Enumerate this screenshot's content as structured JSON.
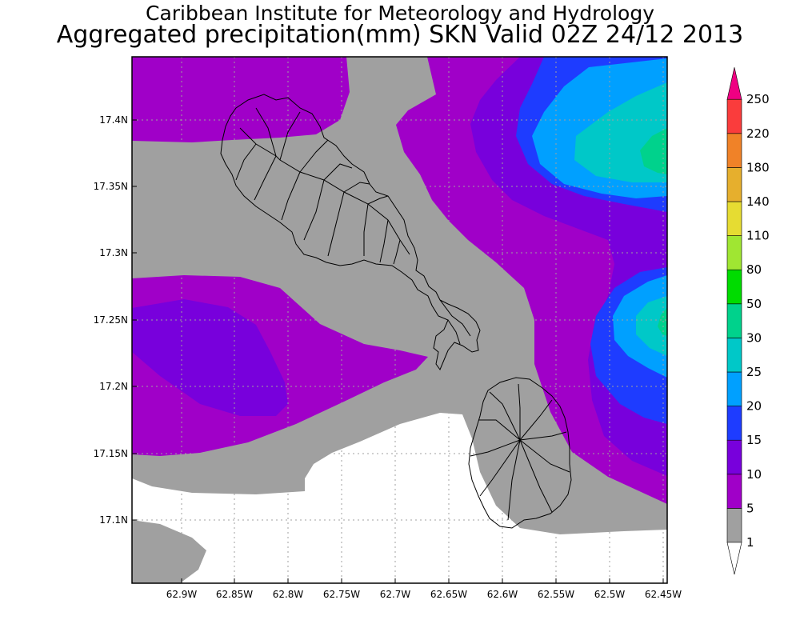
{
  "header": {
    "line1": "Caribbean Institute for Meteorology and Hydrology",
    "line2": "Aggregated precipitation(mm) SKN Valid 02Z 24/12 2013"
  },
  "axes": {
    "lat_labels": [
      "17.4N",
      "17.35N",
      "17.3N",
      "17.25N",
      "17.2N",
      "17.15N",
      "17.1N"
    ],
    "lon_labels": [
      "62.9W",
      "62.85W",
      "62.8W",
      "62.75W",
      "62.7W",
      "62.65W",
      "62.6W",
      "62.55W",
      "62.5W",
      "62.45W"
    ]
  },
  "colorbar": {
    "levels": [
      {
        "label": "1",
        "color": "#ffffff"
      },
      {
        "label": "5",
        "color": "#a0a0a0"
      },
      {
        "label": "10",
        "color": "#a000c8"
      },
      {
        "label": "15",
        "color": "#7800dc"
      },
      {
        "label": "20",
        "color": "#1e3cff"
      },
      {
        "label": "25",
        "color": "#00a0ff"
      },
      {
        "label": "30",
        "color": "#00c8c8"
      },
      {
        "label": "50",
        "color": "#00d28c"
      },
      {
        "label": "80",
        "color": "#00dc00"
      },
      {
        "label": "110",
        "color": "#a0e632"
      },
      {
        "label": "140",
        "color": "#e6dc32"
      },
      {
        "label": "180",
        "color": "#e6af2d"
      },
      {
        "label": "220",
        "color": "#f08228"
      },
      {
        "label": "250",
        "color": "#fa3c3c"
      }
    ],
    "top_arrow_color": "#f00082",
    "bottom_arrow_color": "#ffffff"
  },
  "map": {
    "islands": [
      "St. Kitts",
      "Nevis"
    ],
    "outline_color": "#000000"
  }
}
